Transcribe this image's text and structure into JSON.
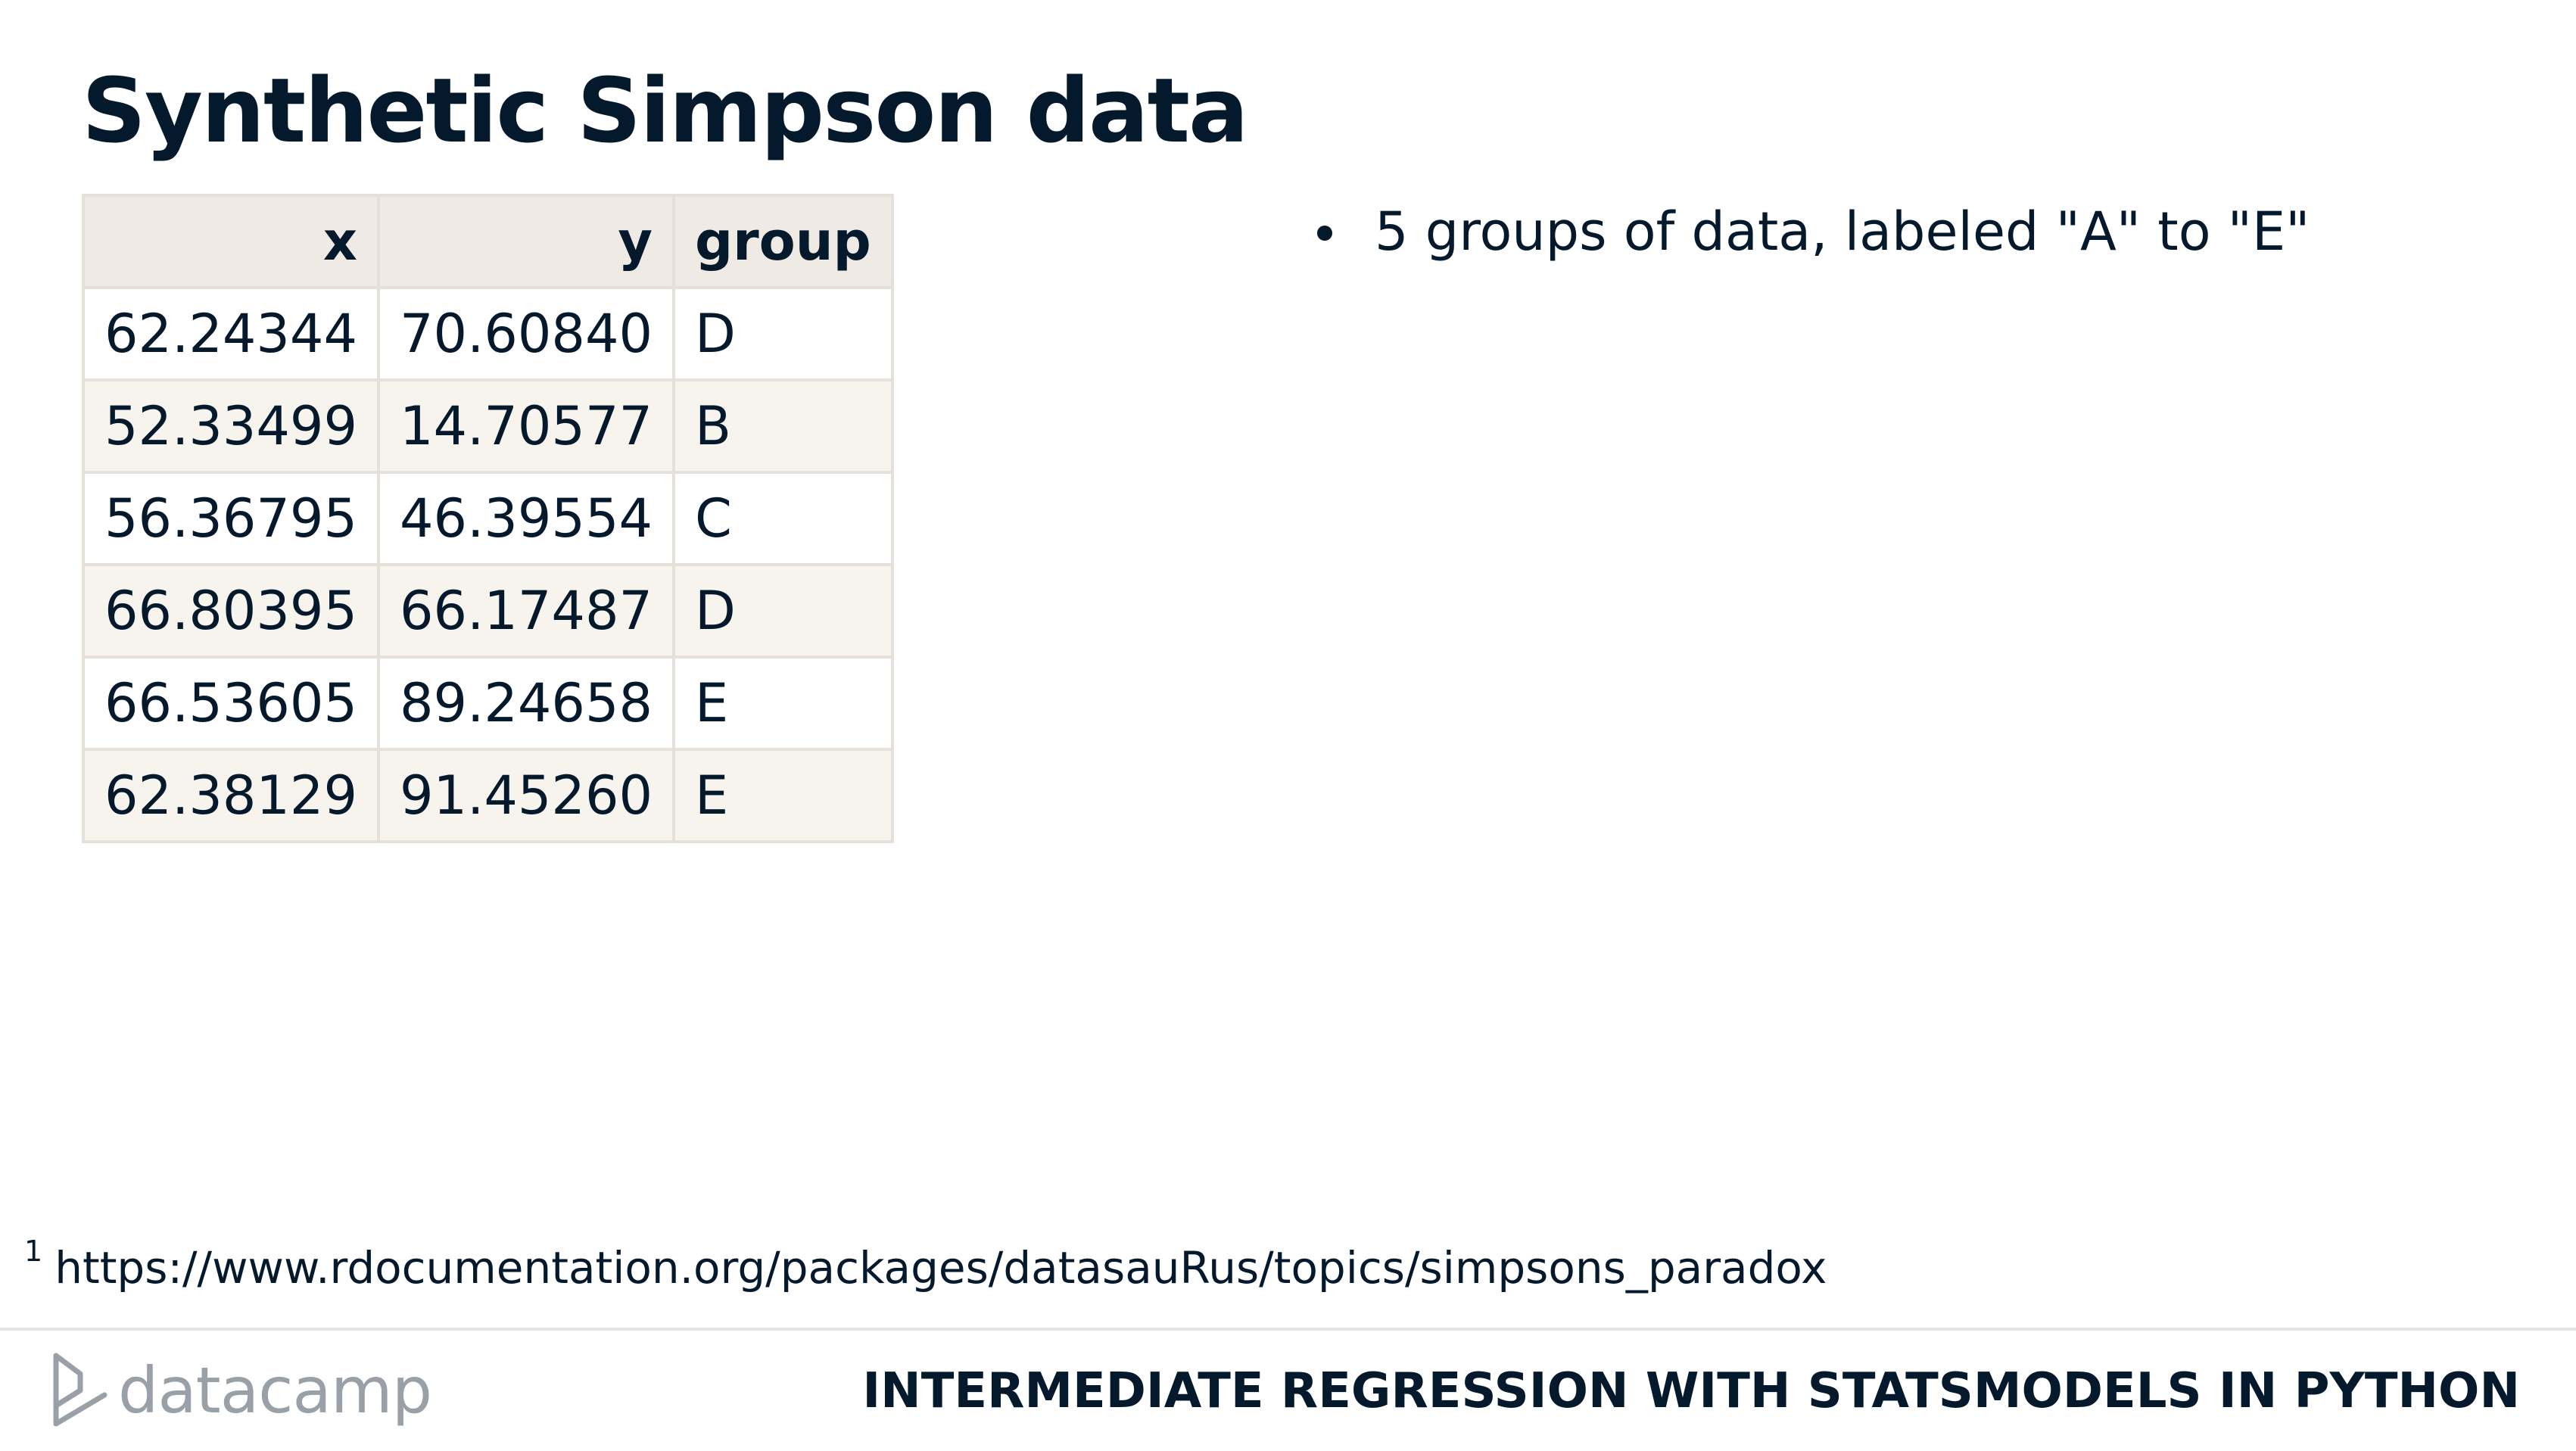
{
  "slide": {
    "title": "Synthetic Simpson data"
  },
  "table": {
    "headers": [
      "x",
      "y",
      "group"
    ],
    "rows": [
      [
        "62.24344",
        "70.60840",
        "D"
      ],
      [
        "52.33499",
        "14.70577",
        "B"
      ],
      [
        "56.36795",
        "46.39554",
        "C"
      ],
      [
        "66.80395",
        "66.17487",
        "D"
      ],
      [
        "66.53605",
        "89.24658",
        "E"
      ],
      [
        "62.38129",
        "91.45260",
        "E"
      ]
    ]
  },
  "bullets": [
    "5 groups of data, labeled \"A\" to \"E\""
  ],
  "footnote": {
    "marker": "1",
    "text": "https://www.rdocumentation.org/packages/datasauRus/topics/simpsons_paradox"
  },
  "footer": {
    "logo_text": "datacamp",
    "logo_icon": "datacamp-logo-icon",
    "course_title": "INTERMEDIATE REGRESSION WITH STATSMODELS IN PYTHON"
  },
  "colors": {
    "text": "#05192d",
    "table_header_bg": "#efebe4",
    "table_stripe_bg": "#f7f3ed",
    "table_border": "#e5e1da",
    "logo_gray": "#9aa0a7"
  }
}
